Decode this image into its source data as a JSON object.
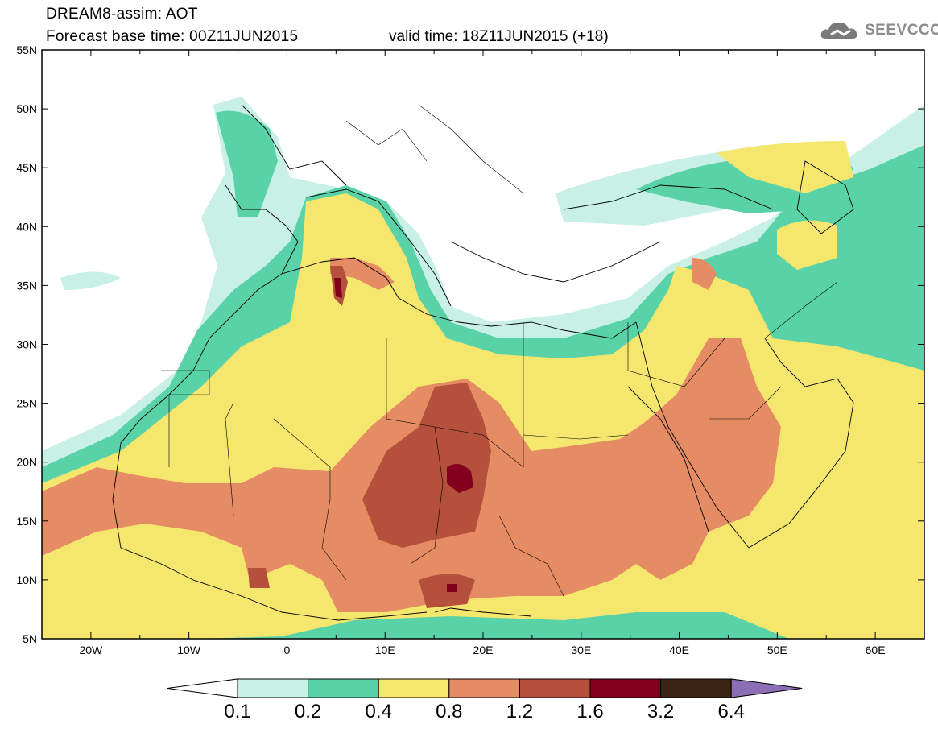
{
  "header": {
    "title": "DREAM8-assim: AOT",
    "base_time": "Forecast base time: 00Z11JUN2015",
    "valid_time": "valid time: 18Z11JUN2015 (+18)"
  },
  "logo": {
    "text": "SEEVCCC",
    "icon": "cloud-icon"
  },
  "map": {
    "lon_range": [
      -25,
      65
    ],
    "lat_range": [
      5,
      55
    ],
    "lat_ticks": [
      "5N",
      "10N",
      "15N",
      "20N",
      "25N",
      "30N",
      "35N",
      "40N",
      "45N",
      "50N",
      "55N"
    ],
    "lon_ticks": [
      "20W",
      "10W",
      "0",
      "10E",
      "20E",
      "30E",
      "40E",
      "50E",
      "60E"
    ],
    "field": "Aerosol Optical Thickness"
  },
  "colorbar": {
    "levels": [
      "0.1",
      "0.2",
      "0.4",
      "0.8",
      "1.2",
      "1.6",
      "3.2",
      "6.4"
    ],
    "colors": [
      "#c8f0e6",
      "#5ad2a8",
      "#f5e66e",
      "#e58c64",
      "#b4503c",
      "#82001e",
      "#3c2314",
      "#8c6eb4"
    ]
  }
}
